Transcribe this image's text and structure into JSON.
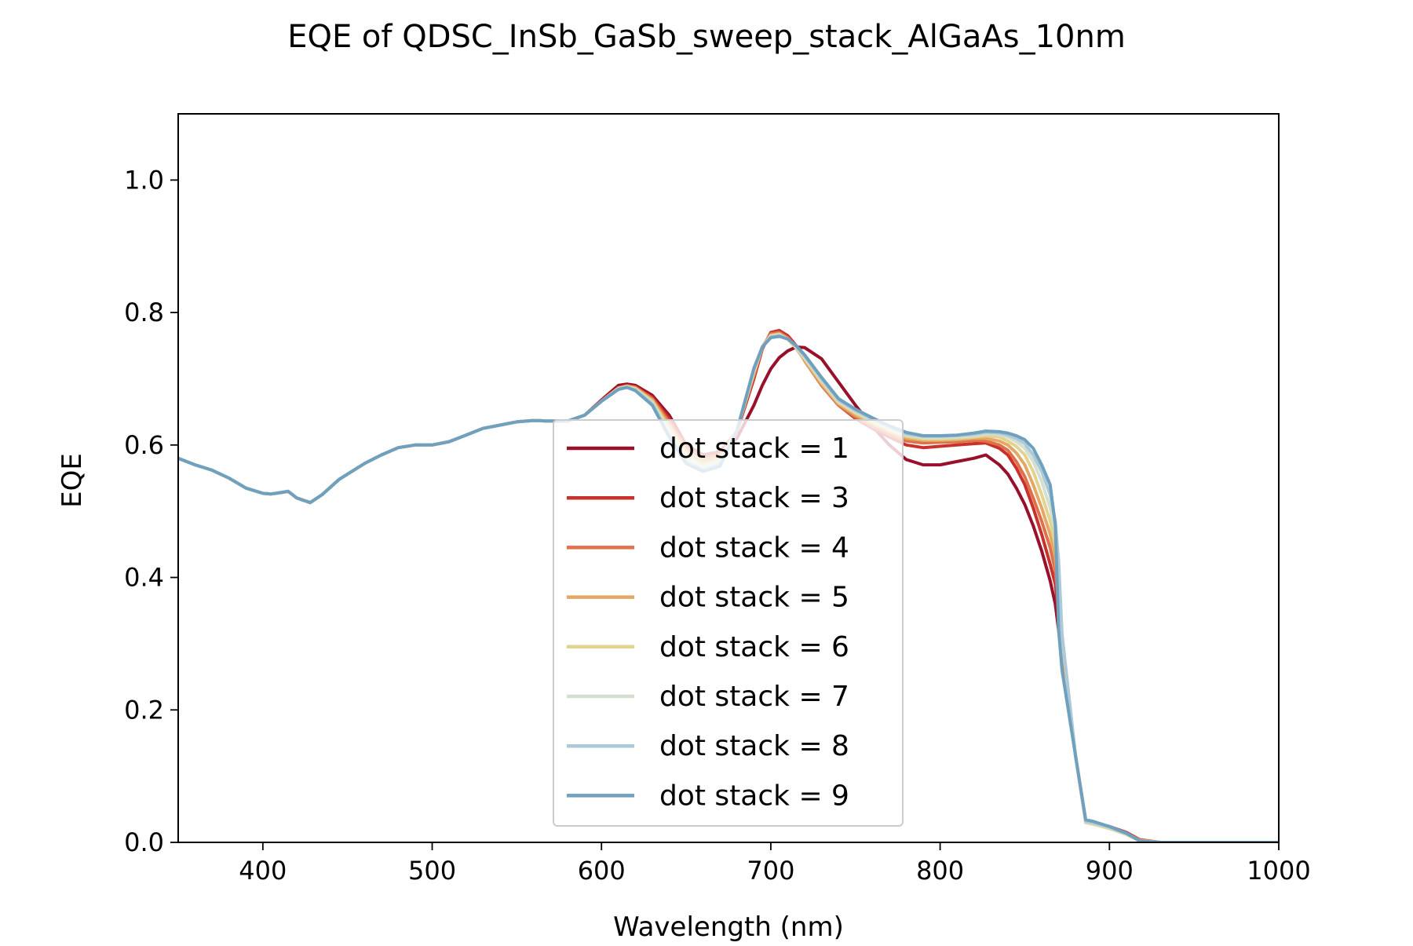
{
  "chart_data": {
    "type": "line",
    "title": "EQE of  QDSC_InSb_GaSb_sweep_stack_AlGaAs_10nm",
    "xlabel": "Wavelength (nm)",
    "ylabel": "EQE",
    "xlim": [
      350,
      1000
    ],
    "ylim": [
      0,
      1.1
    ],
    "xticks": [
      400,
      500,
      600,
      700,
      800,
      900,
      1000
    ],
    "yticks": [
      0.0,
      0.2,
      0.4,
      0.6,
      0.8,
      1.0
    ],
    "xtick_labels": [
      "400",
      "500",
      "600",
      "700",
      "800",
      "900",
      "1000"
    ],
    "ytick_labels": [
      "0.0",
      "0.2",
      "0.4",
      "0.6",
      "0.8",
      "1.0"
    ],
    "grid": false,
    "legend_position": "center",
    "x": [
      350,
      360,
      370,
      380,
      390,
      400,
      405,
      410,
      415,
      420,
      428,
      435,
      445,
      460,
      470,
      480,
      490,
      500,
      510,
      520,
      530,
      540,
      550,
      560,
      570,
      580,
      590,
      600,
      610,
      615,
      620,
      630,
      640,
      650,
      660,
      670,
      680,
      690,
      695,
      700,
      705,
      710,
      715,
      720,
      730,
      740,
      750,
      760,
      770,
      780,
      790,
      800,
      810,
      820,
      827,
      835,
      840,
      845,
      850,
      855,
      860,
      865,
      868,
      870,
      872,
      880,
      886,
      890,
      900,
      910,
      918,
      930,
      1000
    ],
    "series": [
      {
        "name": "dot stack = 1",
        "color": "#99102a",
        "values": [
          0.58,
          0.57,
          0.562,
          0.55,
          0.535,
          0.527,
          0.526,
          0.528,
          0.53,
          0.52,
          0.513,
          0.525,
          0.548,
          0.572,
          0.585,
          0.596,
          0.6,
          0.6,
          0.605,
          0.615,
          0.625,
          0.63,
          0.635,
          0.637,
          0.636,
          0.636,
          0.645,
          0.668,
          0.69,
          0.692,
          0.69,
          0.675,
          0.645,
          0.6,
          0.585,
          0.59,
          0.61,
          0.66,
          0.69,
          0.715,
          0.732,
          0.742,
          0.748,
          0.747,
          0.73,
          0.695,
          0.66,
          0.628,
          0.6,
          0.578,
          0.57,
          0.57,
          0.575,
          0.58,
          0.585,
          0.57,
          0.556,
          0.535,
          0.51,
          0.478,
          0.44,
          0.395,
          0.36,
          0.32,
          0.28,
          0.13,
          0.03,
          0.028,
          0.022,
          0.014,
          0.003,
          0.0,
          0.0
        ]
      },
      {
        "name": "dot stack = 3",
        "color": "#c9312c",
        "values": [
          0.58,
          0.57,
          0.562,
          0.55,
          0.535,
          0.527,
          0.526,
          0.528,
          0.53,
          0.52,
          0.513,
          0.525,
          0.548,
          0.572,
          0.585,
          0.596,
          0.6,
          0.6,
          0.605,
          0.615,
          0.625,
          0.63,
          0.635,
          0.637,
          0.636,
          0.636,
          0.645,
          0.667,
          0.687,
          0.69,
          0.688,
          0.672,
          0.64,
          0.6,
          0.585,
          0.59,
          0.62,
          0.7,
          0.745,
          0.77,
          0.773,
          0.765,
          0.75,
          0.728,
          0.69,
          0.66,
          0.64,
          0.625,
          0.612,
          0.6,
          0.596,
          0.598,
          0.6,
          0.602,
          0.603,
          0.595,
          0.585,
          0.565,
          0.54,
          0.505,
          0.465,
          0.42,
          0.39,
          0.345,
          0.29,
          0.13,
          0.032,
          0.03,
          0.024,
          0.015,
          0.004,
          0.0,
          0.0
        ]
      },
      {
        "name": "dot stack = 4",
        "color": "#e0704a",
        "values": [
          0.58,
          0.57,
          0.562,
          0.55,
          0.535,
          0.527,
          0.526,
          0.528,
          0.53,
          0.52,
          0.513,
          0.525,
          0.548,
          0.572,
          0.585,
          0.596,
          0.6,
          0.6,
          0.605,
          0.615,
          0.625,
          0.63,
          0.635,
          0.637,
          0.636,
          0.636,
          0.645,
          0.666,
          0.686,
          0.689,
          0.687,
          0.67,
          0.635,
          0.595,
          0.58,
          0.585,
          0.622,
          0.705,
          0.748,
          0.768,
          0.77,
          0.762,
          0.748,
          0.727,
          0.69,
          0.66,
          0.642,
          0.628,
          0.616,
          0.606,
          0.603,
          0.604,
          0.605,
          0.607,
          0.606,
          0.6,
          0.592,
          0.575,
          0.552,
          0.52,
          0.485,
          0.445,
          0.41,
          0.36,
          0.3,
          0.13,
          0.032,
          0.03,
          0.023,
          0.014,
          0.003,
          0.0,
          0.0
        ]
      },
      {
        "name": "dot stack = 5",
        "color": "#e3a864",
        "values": [
          0.58,
          0.57,
          0.562,
          0.55,
          0.535,
          0.527,
          0.526,
          0.528,
          0.53,
          0.52,
          0.513,
          0.525,
          0.548,
          0.572,
          0.585,
          0.596,
          0.6,
          0.6,
          0.605,
          0.615,
          0.625,
          0.63,
          0.635,
          0.637,
          0.636,
          0.636,
          0.645,
          0.666,
          0.686,
          0.689,
          0.686,
          0.668,
          0.63,
          0.59,
          0.575,
          0.582,
          0.622,
          0.708,
          0.748,
          0.766,
          0.768,
          0.76,
          0.746,
          0.728,
          0.692,
          0.662,
          0.645,
          0.632,
          0.62,
          0.61,
          0.607,
          0.607,
          0.608,
          0.61,
          0.61,
          0.606,
          0.6,
          0.588,
          0.57,
          0.54,
          0.505,
          0.465,
          0.43,
          0.375,
          0.305,
          0.13,
          0.03,
          0.028,
          0.021,
          0.013,
          0.003,
          0.0,
          0.0
        ]
      },
      {
        "name": "dot stack = 6",
        "color": "#e2d48e",
        "values": [
          0.58,
          0.57,
          0.562,
          0.55,
          0.535,
          0.527,
          0.526,
          0.528,
          0.53,
          0.52,
          0.513,
          0.525,
          0.548,
          0.572,
          0.585,
          0.596,
          0.6,
          0.6,
          0.605,
          0.615,
          0.625,
          0.63,
          0.635,
          0.637,
          0.636,
          0.636,
          0.645,
          0.666,
          0.685,
          0.688,
          0.685,
          0.666,
          0.625,
          0.585,
          0.57,
          0.578,
          0.622,
          0.71,
          0.748,
          0.765,
          0.767,
          0.76,
          0.747,
          0.73,
          0.695,
          0.664,
          0.648,
          0.635,
          0.623,
          0.613,
          0.609,
          0.609,
          0.61,
          0.612,
          0.614,
          0.612,
          0.606,
          0.598,
          0.585,
          0.56,
          0.525,
          0.485,
          0.45,
          0.395,
          0.31,
          0.13,
          0.03,
          0.028,
          0.021,
          0.012,
          0.002,
          0.0,
          0.0
        ]
      },
      {
        "name": "dot stack = 7",
        "color": "#d4dfcf",
        "values": [
          0.58,
          0.57,
          0.562,
          0.55,
          0.535,
          0.527,
          0.526,
          0.528,
          0.53,
          0.52,
          0.513,
          0.525,
          0.548,
          0.572,
          0.585,
          0.596,
          0.6,
          0.6,
          0.605,
          0.615,
          0.625,
          0.63,
          0.635,
          0.637,
          0.636,
          0.636,
          0.645,
          0.666,
          0.685,
          0.688,
          0.684,
          0.664,
          0.62,
          0.58,
          0.566,
          0.574,
          0.622,
          0.712,
          0.748,
          0.764,
          0.766,
          0.76,
          0.748,
          0.732,
          0.698,
          0.666,
          0.65,
          0.637,
          0.625,
          0.615,
          0.611,
          0.611,
          0.612,
          0.614,
          0.617,
          0.616,
          0.612,
          0.605,
          0.595,
          0.575,
          0.545,
          0.505,
          0.47,
          0.41,
          0.312,
          0.13,
          0.031,
          0.029,
          0.022,
          0.013,
          0.002,
          0.0,
          0.0
        ]
      },
      {
        "name": "dot stack = 8",
        "color": "#abc9d9",
        "values": [
          0.58,
          0.57,
          0.562,
          0.55,
          0.535,
          0.527,
          0.526,
          0.528,
          0.53,
          0.52,
          0.513,
          0.525,
          0.548,
          0.572,
          0.585,
          0.596,
          0.6,
          0.6,
          0.605,
          0.615,
          0.625,
          0.63,
          0.635,
          0.637,
          0.636,
          0.636,
          0.645,
          0.666,
          0.684,
          0.687,
          0.683,
          0.662,
          0.615,
          0.575,
          0.563,
          0.571,
          0.622,
          0.714,
          0.748,
          0.763,
          0.765,
          0.76,
          0.749,
          0.734,
          0.7,
          0.668,
          0.652,
          0.639,
          0.627,
          0.617,
          0.613,
          0.613,
          0.614,
          0.616,
          0.619,
          0.618,
          0.615,
          0.61,
          0.602,
          0.585,
          0.56,
          0.525,
          0.485,
          0.425,
          0.315,
          0.13,
          0.032,
          0.03,
          0.023,
          0.013,
          0.002,
          0.0,
          0.0
        ]
      },
      {
        "name": "dot stack = 9",
        "color": "#6fa0be",
        "values": [
          0.58,
          0.57,
          0.562,
          0.55,
          0.535,
          0.527,
          0.526,
          0.528,
          0.53,
          0.52,
          0.513,
          0.525,
          0.548,
          0.572,
          0.585,
          0.596,
          0.6,
          0.6,
          0.605,
          0.615,
          0.625,
          0.63,
          0.635,
          0.637,
          0.636,
          0.636,
          0.645,
          0.666,
          0.684,
          0.687,
          0.682,
          0.66,
          0.612,
          0.572,
          0.56,
          0.568,
          0.622,
          0.716,
          0.748,
          0.762,
          0.764,
          0.76,
          0.75,
          0.736,
          0.702,
          0.67,
          0.654,
          0.641,
          0.629,
          0.619,
          0.614,
          0.614,
          0.615,
          0.618,
          0.621,
          0.62,
          0.618,
          0.614,
          0.608,
          0.595,
          0.57,
          0.54,
          0.48,
          0.32,
          0.26,
          0.13,
          0.034,
          0.032,
          0.024,
          0.014,
          0.002,
          0.0,
          0.0
        ]
      }
    ]
  }
}
